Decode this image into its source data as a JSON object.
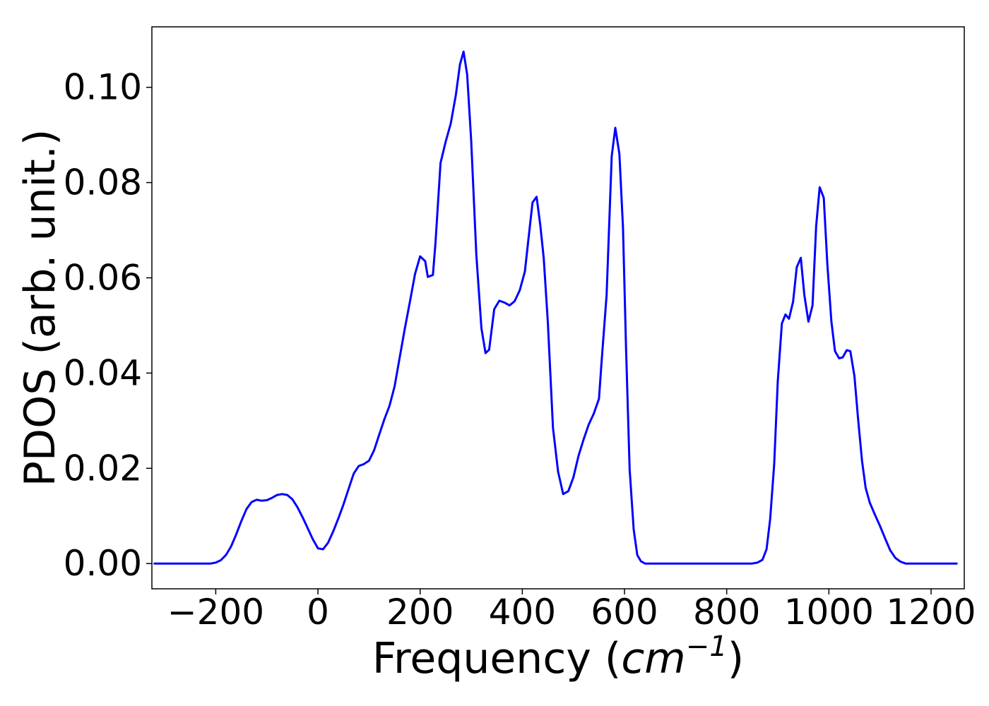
{
  "chart_data": {
    "type": "line",
    "title": "",
    "xlabel": {
      "prefix": "Frequency (",
      "unit_base": "cm",
      "unit_exp": "−1",
      "suffix": ")"
    },
    "ylabel": "PDOS (arb. unit.)",
    "xlim": [
      -325,
      1265
    ],
    "ylim": [
      -0.0053,
      0.1127
    ],
    "xticks": [
      -200,
      0,
      200,
      400,
      600,
      800,
      1000,
      1200
    ],
    "xtick_labels": [
      "−200",
      "0",
      "200",
      "400",
      "600",
      "800",
      "1000",
      "1200"
    ],
    "yticks": [
      0.0,
      0.02,
      0.04,
      0.06,
      0.08,
      0.1
    ],
    "ytick_labels": [
      "0.00",
      "0.02",
      "0.04",
      "0.06",
      "0.08",
      "0.10"
    ],
    "grid": false,
    "legend": null,
    "series": [
      {
        "color": "#0000ff",
        "x": [
          -320,
          -280,
          -240,
          -210,
          -200,
          -190,
          -180,
          -170,
          -160,
          -150,
          -140,
          -130,
          -120,
          -110,
          -100,
          -90,
          -80,
          -70,
          -60,
          -50,
          -40,
          -30,
          -20,
          -10,
          0,
          10,
          20,
          30,
          40,
          50,
          60,
          70,
          80,
          90,
          100,
          110,
          120,
          130,
          140,
          150,
          160,
          170,
          180,
          190,
          200,
          210,
          215,
          225,
          230,
          240,
          250,
          260,
          270,
          278,
          285,
          292,
          300,
          310,
          320,
          328,
          335,
          345,
          355,
          365,
          375,
          385,
          395,
          405,
          412,
          420,
          428,
          435,
          442,
          450,
          460,
          470,
          480,
          490,
          500,
          510,
          520,
          530,
          540,
          550,
          555,
          565,
          575,
          582,
          590,
          597,
          603,
          610,
          618,
          625,
          632,
          640,
          650,
          700,
          750,
          800,
          850,
          860,
          870,
          878,
          885,
          893,
          900,
          908,
          915,
          922,
          930,
          937,
          945,
          952,
          960,
          968,
          975,
          982,
          990,
          997,
          1005,
          1012,
          1020,
          1027,
          1035,
          1042,
          1050,
          1057,
          1065,
          1072,
          1080,
          1090,
          1100,
          1110,
          1120,
          1130,
          1140,
          1150,
          1160,
          1200,
          1250
        ],
        "y": [
          0.0,
          0.0,
          0.0,
          0.0,
          0.0002,
          0.0007,
          0.0018,
          0.0036,
          0.0061,
          0.0089,
          0.0114,
          0.0129,
          0.0134,
          0.0132,
          0.0133,
          0.0138,
          0.0144,
          0.0146,
          0.0144,
          0.0135,
          0.0118,
          0.0097,
          0.0074,
          0.0051,
          0.0032,
          0.003,
          0.0044,
          0.0068,
          0.0095,
          0.0124,
          0.0157,
          0.0189,
          0.0205,
          0.0209,
          0.0216,
          0.0238,
          0.0271,
          0.0303,
          0.0331,
          0.0372,
          0.0433,
          0.0493,
          0.055,
          0.0608,
          0.0645,
          0.0635,
          0.0602,
          0.0606,
          0.0672,
          0.0841,
          0.0886,
          0.0924,
          0.0984,
          0.1048,
          0.1075,
          0.1027,
          0.0888,
          0.0648,
          0.0494,
          0.0442,
          0.0449,
          0.0534,
          0.0552,
          0.0548,
          0.0542,
          0.0551,
          0.0574,
          0.0613,
          0.0682,
          0.0758,
          0.077,
          0.0712,
          0.0641,
          0.0507,
          0.0285,
          0.0193,
          0.0146,
          0.0152,
          0.0181,
          0.0226,
          0.0261,
          0.0292,
          0.0315,
          0.0346,
          0.0422,
          0.0564,
          0.0855,
          0.0915,
          0.086,
          0.0705,
          0.0453,
          0.0198,
          0.0072,
          0.0018,
          0.0005,
          0.0,
          0.0,
          0.0,
          0.0,
          0.0,
          0.0,
          0.0002,
          0.0008,
          0.003,
          0.0093,
          0.0208,
          0.0383,
          0.0504,
          0.0523,
          0.0514,
          0.055,
          0.0622,
          0.0642,
          0.0564,
          0.0508,
          0.0542,
          0.0708,
          0.079,
          0.0768,
          0.0628,
          0.0508,
          0.0446,
          0.0431,
          0.0433,
          0.0448,
          0.0446,
          0.0394,
          0.0305,
          0.0215,
          0.0159,
          0.0128,
          0.0103,
          0.0079,
          0.0053,
          0.0028,
          0.0012,
          0.0004,
          0.0,
          0.0,
          0.0,
          0.0
        ]
      }
    ]
  }
}
